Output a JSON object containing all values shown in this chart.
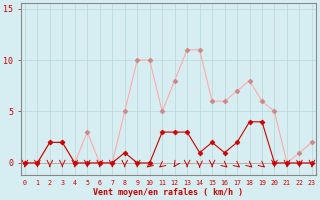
{
  "x": [
    0,
    1,
    2,
    3,
    4,
    5,
    6,
    7,
    8,
    9,
    10,
    11,
    12,
    13,
    14,
    15,
    16,
    17,
    18,
    19,
    20,
    21,
    22,
    23
  ],
  "wind_avg": [
    0,
    0,
    2,
    2,
    0,
    0,
    0,
    0,
    1,
    0,
    0,
    3,
    3,
    3,
    1,
    2,
    1,
    2,
    4,
    4,
    0,
    0,
    0,
    0
  ],
  "wind_gust": [
    0,
    0,
    2,
    2,
    0,
    3,
    0,
    0,
    5,
    10,
    10,
    5,
    8,
    11,
    11,
    6,
    6,
    7,
    8,
    6,
    5,
    0,
    1,
    2
  ],
  "bg_color": "#d6eef2",
  "grid_color": "#b8d8d8",
  "line_color_avg": "#cc0000",
  "line_color_gust": "#ffaaaa",
  "marker_color_avg": "#cc0000",
  "marker_color_gust": "#cc8888",
  "xlabel": "Vent moyen/en rafales ( km/h )",
  "xlabel_color": "#cc0000",
  "ylabel_ticks": [
    0,
    5,
    10,
    15
  ],
  "xlim": [
    -0.3,
    23.3
  ],
  "ylim": [
    -1.2,
    15.5
  ],
  "tick_color": "#cc0000",
  "axis_color": "#888888",
  "arrow_down": [
    0,
    1,
    2,
    3,
    4,
    5,
    6,
    7,
    8,
    9,
    13,
    15,
    20,
    21,
    22,
    23
  ],
  "arrow_upleft": [
    10,
    11
  ],
  "arrow_upright": [
    16,
    17,
    18,
    19
  ],
  "arrow_up": [
    14
  ],
  "arrow_downleft": [
    12
  ]
}
